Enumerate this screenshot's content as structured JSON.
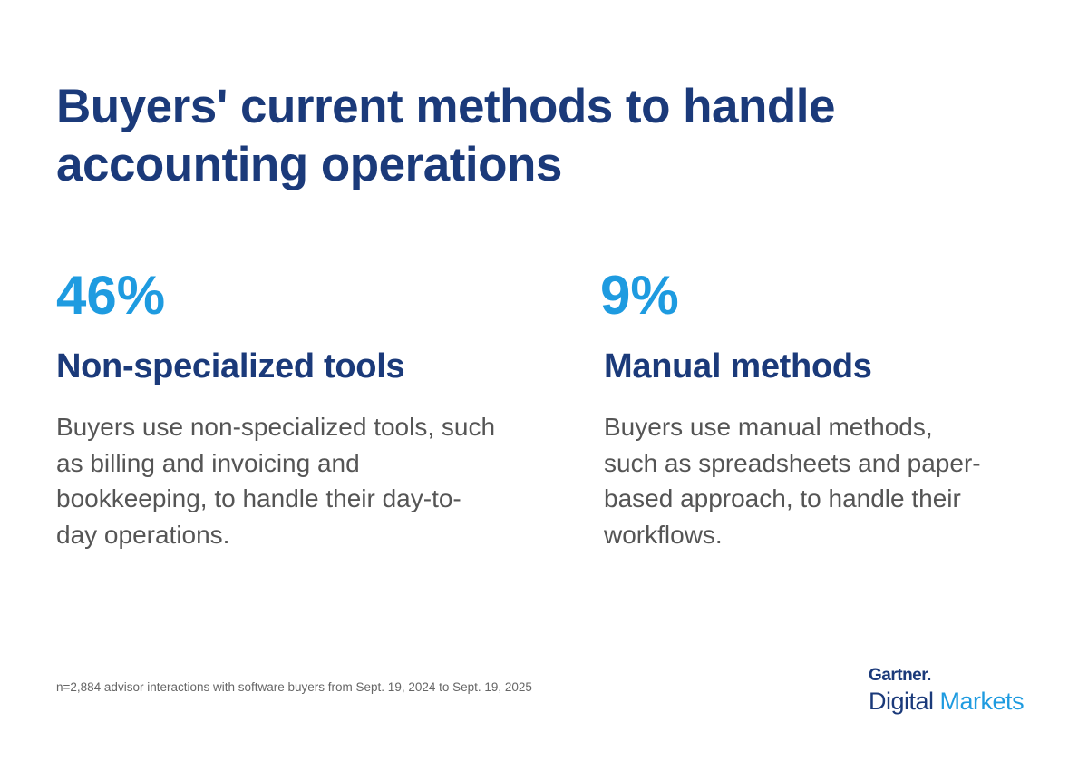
{
  "header": {
    "title": "Buyers' current methods to handle accounting operations"
  },
  "stats": [
    {
      "value": "46%",
      "label": "Non-specialized tools",
      "description": "Buyers use non-specialized tools, such as billing and invoicing and bookkeeping, to handle their day-to-day operations."
    },
    {
      "value": "9%",
      "label": "Manual methods",
      "description": "Buyers use manual methods, such as spreadsheets and paper-based approach, to handle their workflows."
    }
  ],
  "footer": {
    "note": "n=2,884 advisor interactions with software buyers from Sept. 19, 2024 to Sept. 19, 2025",
    "logo": {
      "brand": "Gartner.",
      "line1": "Digital",
      "line2": "Markets"
    }
  }
}
